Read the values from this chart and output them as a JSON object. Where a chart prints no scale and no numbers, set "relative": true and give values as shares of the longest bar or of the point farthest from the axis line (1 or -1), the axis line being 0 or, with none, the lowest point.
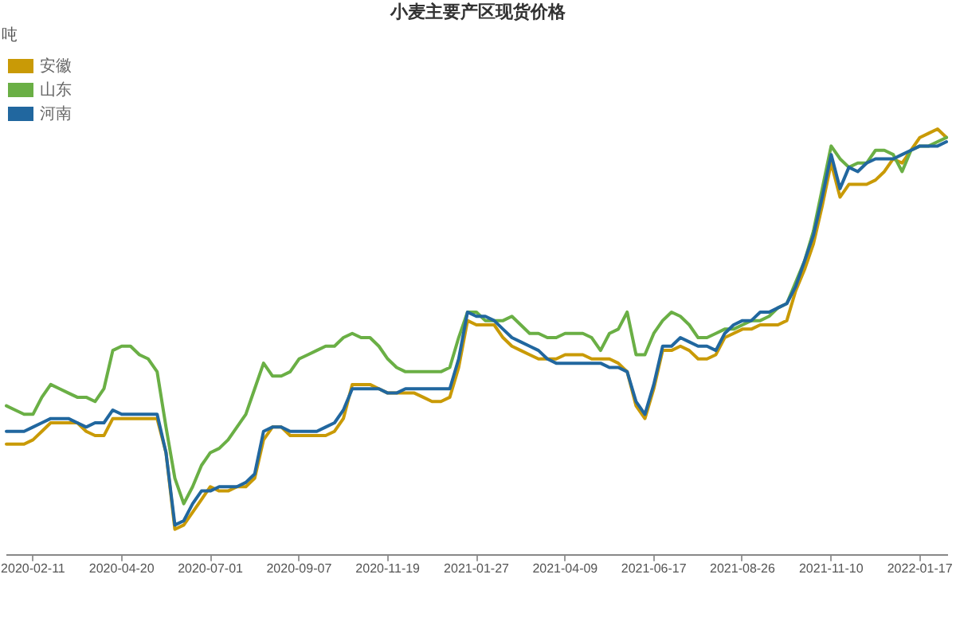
{
  "chart_data": {
    "type": "line",
    "title": "小麦主要产区现货价格",
    "annotations": [
      "吨"
    ],
    "relative": true,
    "legend": "top left",
    "marker": "none",
    "categories": [
      null,
      null,
      null,
      "2020-02-11",
      null,
      null,
      null,
      null,
      null,
      null,
      null,
      null,
      null,
      "2020-04-20",
      null,
      null,
      null,
      null,
      null,
      null,
      null,
      null,
      null,
      "2020-07-01",
      null,
      null,
      null,
      null,
      null,
      null,
      null,
      null,
      null,
      "2020-09-07",
      null,
      null,
      null,
      null,
      null,
      null,
      null,
      null,
      null,
      "2020-11-19",
      null,
      null,
      null,
      null,
      null,
      null,
      null,
      null,
      null,
      "2021-01-27",
      null,
      null,
      null,
      null,
      null,
      null,
      null,
      null,
      null,
      "2021-04-09",
      null,
      null,
      null,
      null,
      null,
      null,
      null,
      null,
      null,
      "2021-06-17",
      null,
      null,
      null,
      null,
      null,
      null,
      null,
      null,
      null,
      "2021-08-26",
      null,
      null,
      null,
      null,
      null,
      null,
      null,
      null,
      null,
      "2021-11-10",
      null,
      null,
      null,
      null,
      null,
      null,
      null,
      null,
      null,
      "2022-01-17",
      null,
      null,
      null
    ],
    "series": [
      {
        "name": "安徽",
        "color": "#c99a06",
        "values": [
          0.26,
          0.26,
          0.26,
          0.27,
          0.29,
          0.31,
          0.31,
          0.31,
          0.31,
          0.29,
          0.28,
          0.28,
          0.32,
          0.32,
          0.32,
          0.32,
          0.32,
          0.32,
          0.24,
          0.06,
          0.07,
          0.1,
          0.13,
          0.16,
          0.15,
          0.15,
          0.16,
          0.16,
          0.18,
          0.27,
          0.3,
          0.3,
          0.28,
          0.28,
          0.28,
          0.28,
          0.28,
          0.29,
          0.32,
          0.4,
          0.4,
          0.4,
          0.39,
          0.38,
          0.38,
          0.38,
          0.38,
          0.37,
          0.36,
          0.36,
          0.37,
          0.44,
          0.55,
          0.54,
          0.54,
          0.54,
          0.51,
          0.49,
          0.48,
          0.47,
          0.46,
          0.46,
          0.46,
          0.47,
          0.47,
          0.47,
          0.46,
          0.46,
          0.46,
          0.45,
          0.43,
          0.35,
          0.32,
          0.39,
          0.48,
          0.48,
          0.49,
          0.48,
          0.46,
          0.46,
          0.47,
          0.51,
          0.52,
          0.53,
          0.53,
          0.54,
          0.54,
          0.54,
          0.55,
          0.62,
          0.67,
          0.73,
          0.82,
          0.92,
          0.84,
          0.87,
          0.87,
          0.87,
          0.88,
          0.9,
          0.93,
          0.92,
          0.95,
          0.98,
          0.99,
          1,
          0.98
        ]
      },
      {
        "name": "山东",
        "color": "#6aaf45",
        "values": [
          0.35,
          0.34,
          0.33,
          0.33,
          0.37,
          0.4,
          0.39,
          0.38,
          0.37,
          0.37,
          0.36,
          0.39,
          0.48,
          0.49,
          0.49,
          0.47,
          0.46,
          0.43,
          0.3,
          0.18,
          0.12,
          0.16,
          0.21,
          0.24,
          0.25,
          0.27,
          0.3,
          0.33,
          0.39,
          0.45,
          0.42,
          0.42,
          0.43,
          0.46,
          0.47,
          0.48,
          0.49,
          0.49,
          0.51,
          0.52,
          0.51,
          0.51,
          0.49,
          0.46,
          0.44,
          0.43,
          0.43,
          0.43,
          0.43,
          0.43,
          0.44,
          0.51,
          0.57,
          0.57,
          0.55,
          0.55,
          0.55,
          0.56,
          0.54,
          0.52,
          0.52,
          0.51,
          0.51,
          0.52,
          0.52,
          0.52,
          0.51,
          0.48,
          0.52,
          0.53,
          0.57,
          0.47,
          0.47,
          0.52,
          0.55,
          0.57,
          0.56,
          0.54,
          0.51,
          0.51,
          0.52,
          0.53,
          0.53,
          0.54,
          0.55,
          0.55,
          0.56,
          0.58,
          0.59,
          0.64,
          0.69,
          0.76,
          0.86,
          0.96,
          0.93,
          0.91,
          0.92,
          0.92,
          0.95,
          0.95,
          0.94,
          0.9,
          0.95,
          0.96,
          0.96,
          0.97,
          0.98
        ]
      },
      {
        "name": "河南",
        "color": "#21679f",
        "values": [
          0.29,
          0.29,
          0.29,
          0.3,
          0.31,
          0.32,
          0.32,
          0.32,
          0.31,
          0.3,
          0.31,
          0.31,
          0.34,
          0.33,
          0.33,
          0.33,
          0.33,
          0.33,
          0.24,
          0.07,
          0.08,
          0.12,
          0.15,
          0.15,
          0.16,
          0.16,
          0.16,
          0.17,
          0.19,
          0.29,
          0.3,
          0.3,
          0.29,
          0.29,
          0.29,
          0.29,
          0.3,
          0.31,
          0.34,
          0.39,
          0.39,
          0.39,
          0.39,
          0.38,
          0.38,
          0.39,
          0.39,
          0.39,
          0.39,
          0.39,
          0.39,
          0.46,
          0.57,
          0.56,
          0.56,
          0.55,
          0.53,
          0.51,
          0.5,
          0.49,
          0.48,
          0.46,
          0.45,
          0.45,
          0.45,
          0.45,
          0.45,
          0.45,
          0.44,
          0.44,
          0.43,
          0.36,
          0.33,
          0.4,
          0.49,
          0.49,
          0.51,
          0.5,
          0.49,
          0.49,
          0.48,
          0.52,
          0.54,
          0.55,
          0.55,
          0.57,
          0.57,
          0.58,
          0.59,
          0.63,
          0.69,
          0.75,
          0.84,
          0.94,
          0.86,
          0.91,
          0.9,
          0.92,
          0.93,
          0.93,
          0.93,
          0.94,
          0.95,
          0.96,
          0.96,
          0.96,
          0.97
        ]
      }
    ]
  }
}
